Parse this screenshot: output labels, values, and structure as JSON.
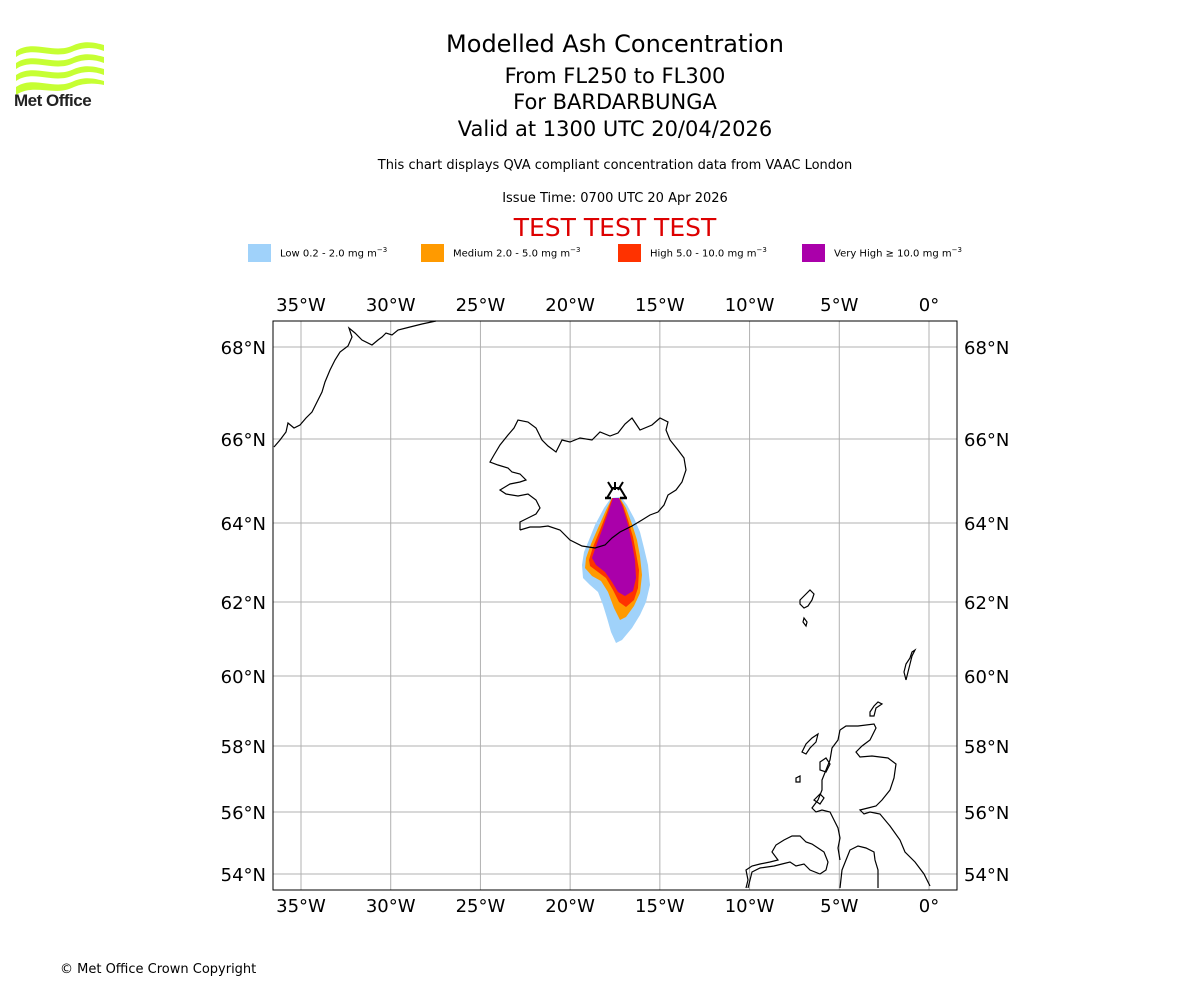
{
  "header": {
    "logo_text": "Met Office",
    "title": "Modelled Ash Concentration",
    "level_range": "From FL250 to FL300",
    "volcano": "For BARDARBUNGA",
    "valid_time": "Valid at 1300 UTC 20/04/2026",
    "subtitle": "This chart displays QVA compliant concentration data from VAAC London",
    "issue_time": "Issue Time: 0700 UTC 20 Apr 2026",
    "test_banner": "TEST TEST TEST"
  },
  "legend": [
    {
      "label": "Low 0.2 - 2.0 mg m",
      "exp": "−3",
      "color": "#a0d2fa"
    },
    {
      "label": "Medium 2.0 - 5.0 mg m",
      "exp": "−3",
      "color": "#ff9a00"
    },
    {
      "label": "High 5.0 - 10.0 mg m",
      "exp": "−3",
      "color": "#ff3200"
    },
    {
      "label": "Very High  ≥  10.0 mg m",
      "exp": "−3",
      "color": "#aa00aa"
    }
  ],
  "footer": {
    "copyright": "© Met Office Crown Copyright"
  },
  "chart_data": {
    "type": "heatmap",
    "title": "Modelled Ash Concentration",
    "projection": "map",
    "lon_range": [
      -36.5,
      1.5
    ],
    "lat_range": [
      53.6,
      68.6
    ],
    "x_ticks": [
      "35°W",
      "30°W",
      "25°W",
      "20°W",
      "15°W",
      "10°W",
      "5°W",
      "0°"
    ],
    "x_tick_values": [
      -35,
      -30,
      -25,
      -20,
      -15,
      -10,
      -5,
      0
    ],
    "y_ticks": [
      "68°N",
      "66°N",
      "64°N",
      "62°N",
      "60°N",
      "58°N",
      "56°N",
      "54°N"
    ],
    "y_tick_values": [
      68,
      66,
      64,
      62,
      60,
      58,
      56,
      54
    ],
    "grid": true,
    "volcano_location": {
      "name": "BARDARBUNGA",
      "lon": -17.5,
      "lat": 64.7
    },
    "ash_levels": [
      {
        "name": "Low",
        "min": 0.2,
        "max": 2.0,
        "units": "mg m-3"
      },
      {
        "name": "Medium",
        "min": 2.0,
        "max": 5.0,
        "units": "mg m-3"
      },
      {
        "name": "High",
        "min": 5.0,
        "max": 10.0,
        "units": "mg m-3"
      },
      {
        "name": "Very High",
        "min": 10.0,
        "max": null,
        "units": "mg m-3"
      }
    ]
  }
}
